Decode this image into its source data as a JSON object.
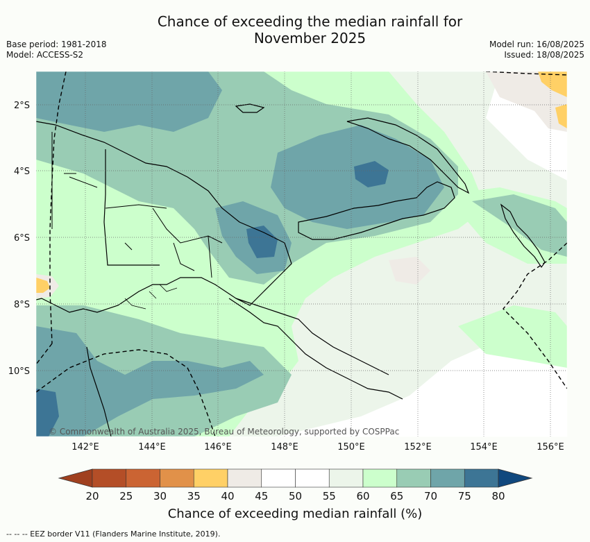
{
  "title_line1": "Chance of exceeding the median rainfall for",
  "title_line2": "November 2025",
  "meta_left": {
    "base_period": "Base period: 1981-2018",
    "model": "Model: ACCESS-S2"
  },
  "meta_right": {
    "model_run": "Model run: 16/08/2025",
    "issued": "Issued: 18/08/2025"
  },
  "copyright": "© Commonwealth of Australia 2025, Bureau of Meteorology, supported by COSPPac",
  "lat_labels": [
    "2°S",
    "4°S",
    "6°S",
    "8°S",
    "10°S"
  ],
  "lon_labels": [
    "142°E",
    "144°E",
    "146°E",
    "148°E",
    "150°E",
    "152°E",
    "154°E",
    "156°E"
  ],
  "colorbar": {
    "ticks": [
      "20",
      "25",
      "30",
      "35",
      "40",
      "45",
      "50",
      "55",
      "60",
      "65",
      "70",
      "75",
      "80"
    ],
    "colors": [
      "#a0401f",
      "#b44e27",
      "#cb6433",
      "#e19149",
      "#ffd066",
      "#efebe6",
      "#ffffff",
      "#ffffff",
      "#ecf5ea",
      "#ccffcc",
      "#99ccb4",
      "#6fa5a9",
      "#3d7595",
      "#10487e"
    ],
    "label": "Chance of exceeding median rainfall (%)"
  },
  "footer": "--  --  -- EEZ border V11 (Flanders Marine Institute, 2019).",
  "colors": {
    "background": "#fbfdf9"
  }
}
